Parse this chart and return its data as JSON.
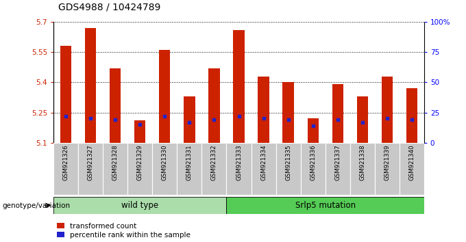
{
  "title": "GDS4988 / 10424789",
  "samples": [
    "GSM921326",
    "GSM921327",
    "GSM921328",
    "GSM921329",
    "GSM921330",
    "GSM921331",
    "GSM921332",
    "GSM921333",
    "GSM921334",
    "GSM921335",
    "GSM921336",
    "GSM921337",
    "GSM921338",
    "GSM921339",
    "GSM921340"
  ],
  "transformed_count": [
    5.58,
    5.67,
    5.47,
    5.21,
    5.56,
    5.33,
    5.47,
    5.66,
    5.43,
    5.4,
    5.22,
    5.39,
    5.33,
    5.43,
    5.37
  ],
  "percentile_rank": [
    22,
    20,
    19,
    15,
    22,
    17,
    19,
    22,
    20,
    19,
    14,
    19,
    17,
    20,
    19
  ],
  "ymin": 5.1,
  "ymax": 5.7,
  "yticks": [
    5.1,
    5.25,
    5.4,
    5.55,
    5.7
  ],
  "ytick_labels": [
    "5.1",
    "5.25",
    "5.4",
    "5.55",
    "5.7"
  ],
  "right_yticks": [
    0,
    25,
    50,
    75,
    100
  ],
  "right_ytick_labels": [
    "0",
    "25",
    "50",
    "75",
    "100%"
  ],
  "bar_color": "#cc2200",
  "blue_color": "#2222cc",
  "wild_type_label": "wild type",
  "mutation_label": "Srlp5 mutation",
  "genotype_label": "genotype/variation",
  "n_wild_type": 7,
  "legend_transformed": "transformed count",
  "legend_percentile": "percentile rank within the sample",
  "bar_width": 0.45,
  "background_gray": "#c8c8c8",
  "wild_type_green": "#aaddaa",
  "mutation_green": "#55cc55",
  "title_fontsize": 10,
  "tick_fontsize": 7.5,
  "bar_bottom": 5.1,
  "fig_width": 6.8,
  "fig_height": 3.54
}
